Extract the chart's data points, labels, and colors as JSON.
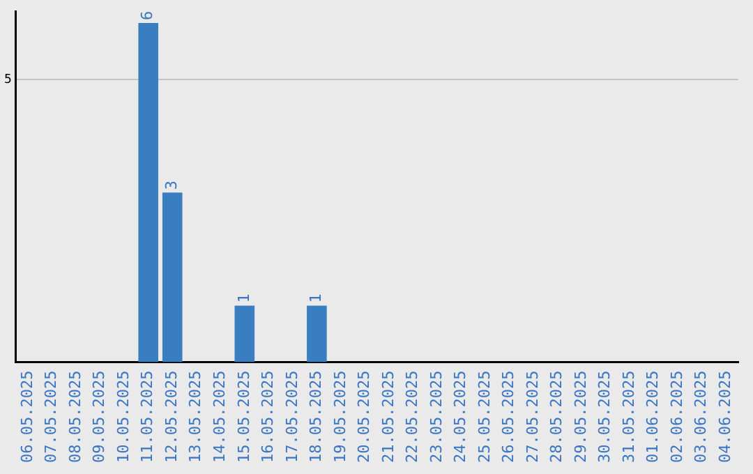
{
  "chart_data": {
    "type": "bar",
    "categories": [
      "06.05.2025",
      "07.05.2025",
      "08.05.2025",
      "09.05.2025",
      "10.05.2025",
      "11.05.2025",
      "12.05.2025",
      "13.05.2025",
      "14.05.2025",
      "15.05.2025",
      "16.05.2025",
      "17.05.2025",
      "18.05.2025",
      "19.05.2025",
      "20.05.2025",
      "21.05.2025",
      "22.05.2025",
      "23.05.2025",
      "24.05.2025",
      "25.05.2025",
      "26.05.2025",
      "27.05.2025",
      "28.05.2025",
      "29.05.2025",
      "30.05.2025",
      "31.05.2025",
      "01.06.2025",
      "02.06.2025",
      "03.06.2025",
      "04.06.2025"
    ],
    "values": [
      0,
      0,
      0,
      0,
      0,
      6,
      3,
      0,
      0,
      1,
      0,
      0,
      1,
      0,
      0,
      0,
      0,
      0,
      0,
      0,
      0,
      0,
      0,
      0,
      0,
      0,
      0,
      0,
      0,
      0
    ],
    "value_labels": [
      null,
      null,
      null,
      null,
      null,
      "6",
      "3",
      null,
      null,
      "1",
      null,
      null,
      "1",
      null,
      null,
      null,
      null,
      null,
      null,
      null,
      null,
      null,
      null,
      null,
      null,
      null,
      null,
      null,
      null,
      null
    ],
    "color": "#3a7ec2",
    "ylim": [
      0,
      6.2
    ],
    "yticks": [
      5
    ],
    "grid": "y"
  }
}
